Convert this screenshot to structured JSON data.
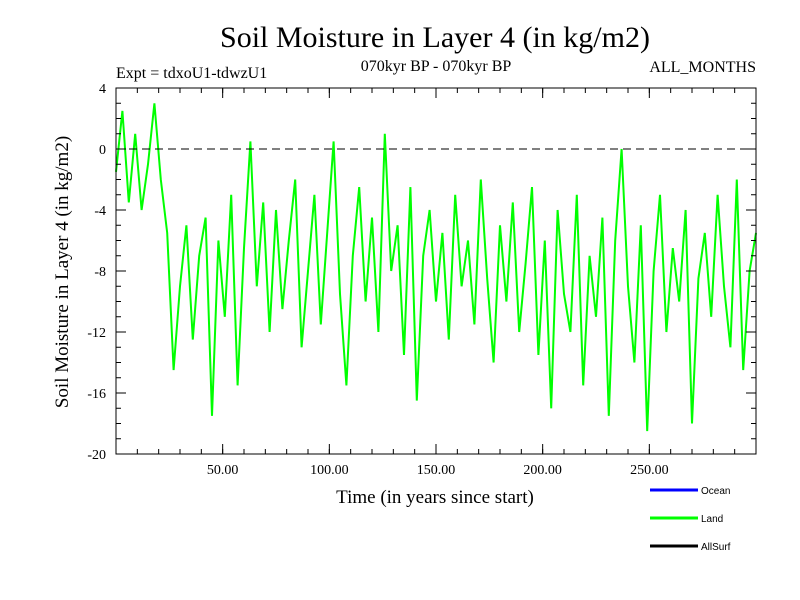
{
  "chart_data": {
    "type": "line",
    "title": "Soil Moisture in Layer 4 (in kg/m2)",
    "subtitle_left": "Expt = tdxoU1-tdwzU1",
    "subtitle_center": "070kyr BP - 070kyr BP",
    "subtitle_right": "ALL_MONTHS",
    "xlabel": "Time (in years since start)",
    "ylabel": "Soil Moisture in Layer 4 (in kg/m2)",
    "xlim": [
      0,
      300
    ],
    "ylim": [
      -20,
      4
    ],
    "x_ticks": [
      50,
      100,
      150,
      200,
      250
    ],
    "x_tick_labels": [
      "50.00",
      "100.00",
      "150.00",
      "200.00",
      "250.00"
    ],
    "y_ticks": [
      4,
      0,
      -4,
      -8,
      -12,
      -16,
      -20
    ],
    "y_tick_labels": [
      "4",
      "0",
      "-4",
      "-8",
      "-12",
      "-16",
      "-20"
    ],
    "reference_line": 0,
    "legend": [
      {
        "name": "Ocean",
        "color": "#0000ff"
      },
      {
        "name": "Land",
        "color": "#00ff00"
      },
      {
        "name": "AllSurf",
        "color": "#000000"
      }
    ],
    "series": [
      {
        "name": "Land",
        "color": "#00ff00",
        "x": [
          0,
          3,
          6,
          9,
          12,
          15,
          18,
          21,
          24,
          27,
          30,
          33,
          36,
          39,
          42,
          45,
          48,
          51,
          54,
          57,
          60,
          63,
          66,
          69,
          72,
          75,
          78,
          81,
          84,
          87,
          90,
          93,
          96,
          99,
          102,
          105,
          108,
          111,
          114,
          117,
          120,
          123,
          126,
          129,
          132,
          135,
          138,
          141,
          144,
          147,
          150,
          153,
          156,
          159,
          162,
          165,
          168,
          171,
          174,
          177,
          180,
          183,
          186,
          189,
          192,
          195,
          198,
          201,
          204,
          207,
          210,
          213,
          216,
          219,
          222,
          225,
          228,
          231,
          234,
          237,
          240,
          243,
          246,
          249,
          252,
          255,
          258,
          261,
          264,
          267,
          270,
          273,
          276,
          279,
          282,
          285,
          288,
          291,
          294,
          297,
          300
        ],
        "values": [
          -1.5,
          2.5,
          -3.5,
          1.0,
          -4.0,
          -1.0,
          3.0,
          -2.0,
          -5.5,
          -14.5,
          -9.0,
          -5.0,
          -12.5,
          -7.0,
          -4.5,
          -17.5,
          -6.0,
          -11.0,
          -3.0,
          -15.5,
          -6.5,
          0.5,
          -9.0,
          -3.5,
          -12.0,
          -4.0,
          -10.5,
          -6.0,
          -2.0,
          -13.0,
          -8.0,
          -3.0,
          -11.5,
          -5.5,
          0.5,
          -9.5,
          -15.5,
          -7.0,
          -2.5,
          -10.0,
          -4.5,
          -12.0,
          1.0,
          -8.0,
          -5.0,
          -13.5,
          -2.5,
          -16.5,
          -7.0,
          -4.0,
          -10.0,
          -5.5,
          -12.5,
          -3.0,
          -9.0,
          -6.0,
          -11.5,
          -2.0,
          -8.5,
          -14.0,
          -5.0,
          -10.0,
          -3.5,
          -12.0,
          -7.5,
          -2.5,
          -13.5,
          -6.0,
          -17.0,
          -4.0,
          -9.5,
          -12.0,
          -3.0,
          -15.5,
          -7.0,
          -11.0,
          -4.5,
          -17.5,
          -6.0,
          0.0,
          -9.0,
          -14.0,
          -5.0,
          -18.5,
          -8.0,
          -3.0,
          -12.0,
          -6.5,
          -10.0,
          -4.0,
          -18.0,
          -8.5,
          -5.5,
          -11.0,
          -3.0,
          -9.0,
          -13.0,
          -2.0,
          -14.5,
          -8.0,
          -5.5
        ]
      }
    ]
  }
}
